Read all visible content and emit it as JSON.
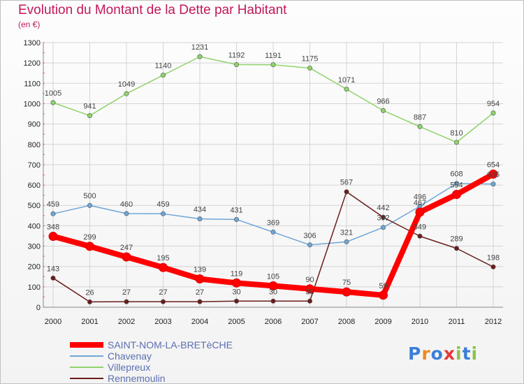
{
  "title": "Evolution du Montant de la Dette par Habitant",
  "subtitle": "(en €)",
  "logo": {
    "letters": [
      "P",
      "r",
      "o",
      "x",
      "i",
      "t",
      "i"
    ],
    "colors": [
      "#3b7fd9",
      "#f08a1c",
      "#3b7fd9",
      "#e53935",
      "#8bc34a",
      "#3b7fd9",
      "#8bc34a"
    ]
  },
  "chart_data": {
    "type": "line",
    "categories": [
      "2000",
      "2001",
      "2002",
      "2003",
      "2004",
      "2005",
      "2006",
      "2007",
      "2008",
      "2009",
      "2010",
      "2011",
      "2012"
    ],
    "ylim": [
      0,
      1300
    ],
    "yticks": [
      0,
      100,
      200,
      300,
      400,
      500,
      600,
      700,
      800,
      900,
      1000,
      1100,
      1200,
      1300
    ],
    "grid": true,
    "legend_position": "bottom-left",
    "series": [
      {
        "name": "Villepreux",
        "color": "#8fd36a",
        "values": [
          1005,
          941,
          1049,
          1140,
          1231,
          1192,
          1191,
          1175,
          1071,
          966,
          887,
          810,
          954
        ]
      },
      {
        "name": "Chavenay",
        "color": "#6ea6d6",
        "values": [
          459,
          500,
          460,
          459,
          434,
          431,
          369,
          306,
          321,
          392,
          496,
          608,
          605
        ]
      },
      {
        "name": "Rennemoulin",
        "color": "#6b1c1c",
        "values": [
          143,
          26,
          27,
          27,
          27,
          30,
          30,
          30,
          567,
          442,
          349,
          289,
          198
        ]
      },
      {
        "name": "SAINT-NOM-LA-BRETèCHE",
        "color": "#ff0000",
        "values": [
          348,
          299,
          247,
          195,
          139,
          119,
          105,
          90,
          75,
          59,
          467,
          554,
          654
        ]
      }
    ],
    "data_labels": [
      [
        "1005",
        "941",
        "1049",
        "1140",
        "1231",
        "1192",
        "1191",
        "1175",
        "1071",
        "966",
        "887",
        "810",
        "954"
      ],
      [
        "459",
        "500",
        "460",
        "459",
        "434",
        "431",
        "369",
        "306",
        "321",
        "392",
        "496",
        "608",
        "605"
      ],
      [
        "143",
        "26",
        "27",
        "27",
        "27",
        "30",
        "30",
        "30",
        "567",
        "442",
        "349",
        "289",
        "198"
      ],
      [
        "348",
        "299",
        "247",
        "195",
        "139",
        "119",
        "105",
        "90",
        "75",
        "59",
        "467",
        "554",
        "654"
      ]
    ],
    "legend_order": [
      "SAINT-NOM-LA-BRETèCHE",
      "Chavenay",
      "Villepreux",
      "Rennemoulin"
    ]
  }
}
